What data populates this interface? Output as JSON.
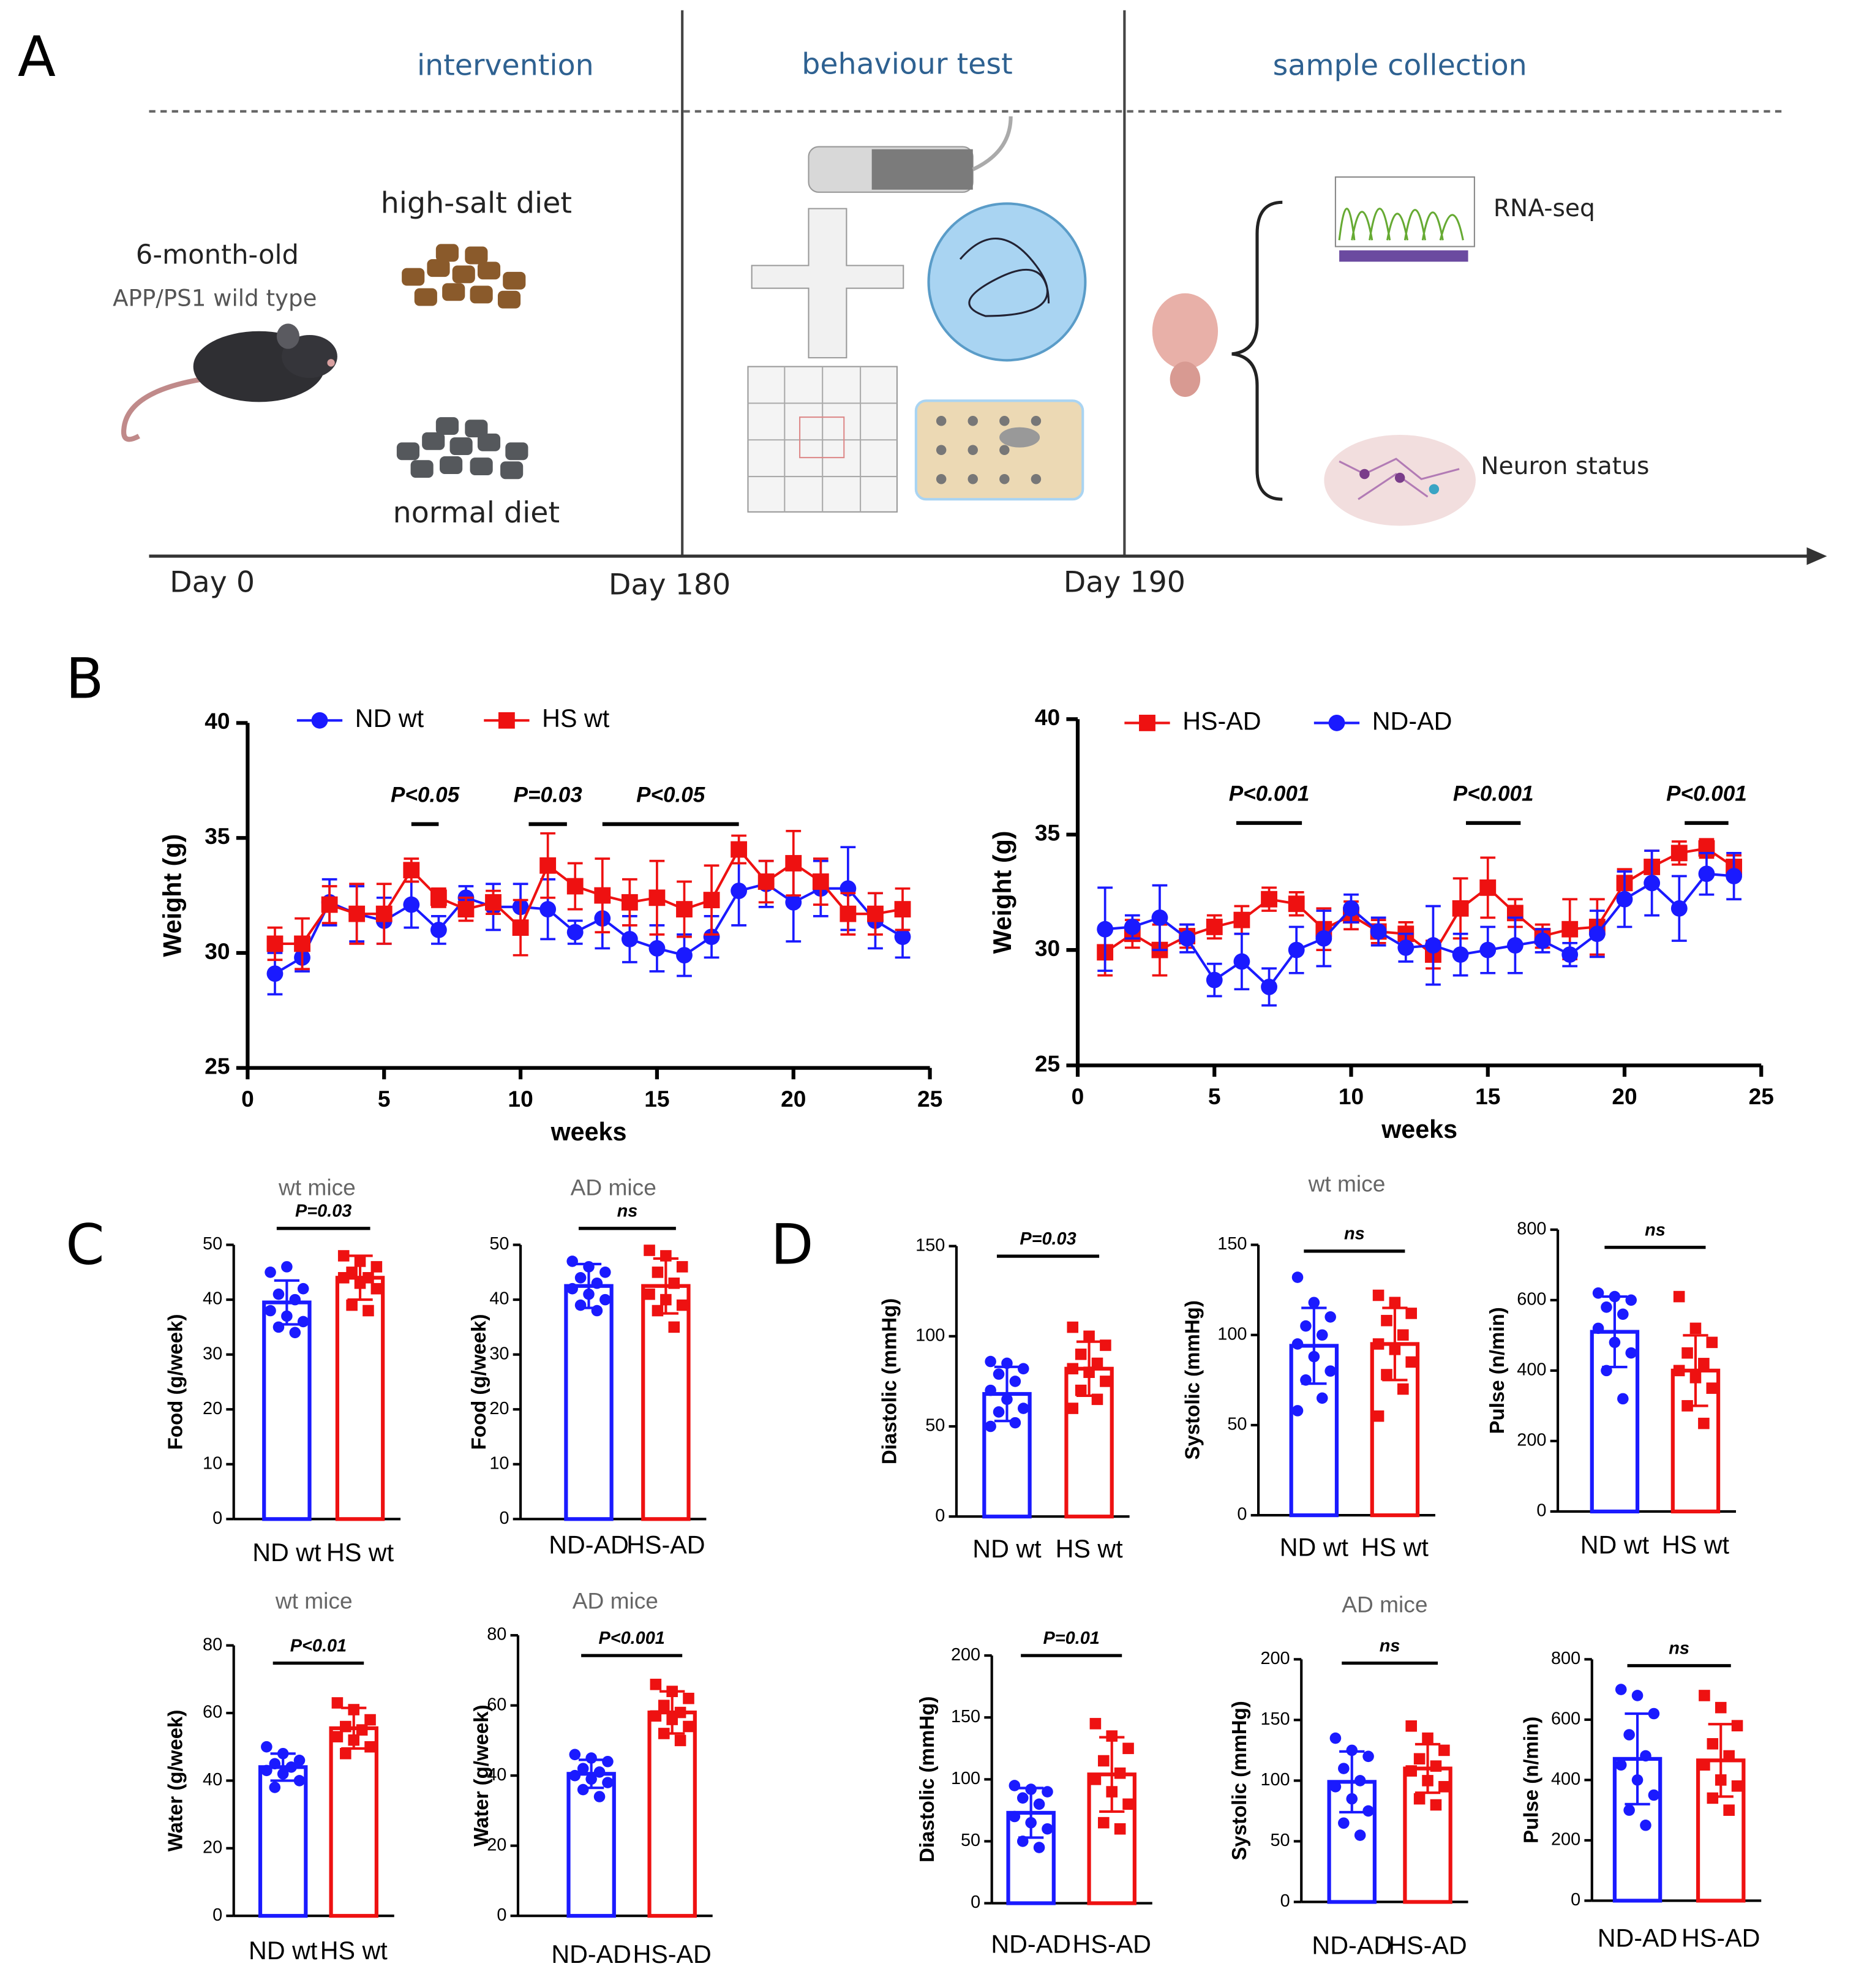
{
  "diagram": {
    "label": "A",
    "phases": [
      "intervention",
      "behaviour test",
      "sample collection"
    ],
    "age": "6-month-old",
    "genotypes": "APP/PS1 wild type",
    "diets": [
      "high-salt diet",
      "normal diet"
    ],
    "assays": [
      "RNA-seq",
      "Neuron status"
    ],
    "days": [
      "Day 0",
      "Day 180",
      "Day 190"
    ]
  },
  "panel_labels": [
    "B",
    "C",
    "D"
  ],
  "chart_data": [
    {
      "type": "line",
      "xlabel": "weeks",
      "ylabel": "Weight (g)",
      "x": [
        1,
        2,
        3,
        4,
        5,
        6,
        7,
        8,
        9,
        10,
        11,
        12,
        13,
        14,
        15,
        16,
        17,
        18,
        19,
        20,
        21,
        22,
        23,
        24
      ],
      "xlim": [
        0,
        25
      ],
      "xticks": [
        0,
        5,
        10,
        15,
        20,
        25
      ],
      "ylim": [
        25,
        40
      ],
      "yticks": [
        25,
        30,
        35,
        40
      ],
      "series": [
        {
          "name": "ND wt",
          "color": "#1a1aff",
          "marker": "circle",
          "values": [
            29.1,
            29.8,
            32.2,
            31.7,
            31.4,
            32.1,
            31.0,
            32.4,
            32.0,
            32.0,
            31.9,
            30.9,
            31.5,
            30.6,
            30.2,
            29.9,
            30.7,
            32.7,
            33.0,
            32.2,
            32.8,
            32.8,
            31.4,
            30.7
          ],
          "errors": [
            0.9,
            0.6,
            1.0,
            1.2,
            1.0,
            1.0,
            0.6,
            0.5,
            1.0,
            1.0,
            1.3,
            0.5,
            1.3,
            1.0,
            1.0,
            0.9,
            0.9,
            1.5,
            1.0,
            1.7,
            1.2,
            1.8,
            1.2,
            0.9
          ]
        },
        {
          "name": "HS wt",
          "color": "#ee1111",
          "marker": "square",
          "values": [
            30.4,
            30.4,
            32.1,
            31.7,
            31.7,
            33.6,
            32.4,
            31.9,
            32.2,
            31.1,
            33.8,
            32.9,
            32.5,
            32.2,
            32.4,
            31.9,
            32.3,
            34.5,
            33.1,
            33.9,
            33.1,
            31.7,
            31.7,
            31.9
          ],
          "errors": [
            0.7,
            1.1,
            0.8,
            1.3,
            1.3,
            0.5,
            0.4,
            0.5,
            0.5,
            1.2,
            1.4,
            1.0,
            1.6,
            1.0,
            1.6,
            1.2,
            1.5,
            0.6,
            0.9,
            1.4,
            1.0,
            0.9,
            0.9,
            0.9
          ]
        }
      ],
      "annotations": [
        {
          "text": "P<0.05",
          "x": [
            6,
            7
          ],
          "y": 35.6
        },
        {
          "text": "P=0.03",
          "x": [
            10.3,
            11.7
          ],
          "y": 35.6
        },
        {
          "text": "P<0.05",
          "x": [
            13,
            18
          ],
          "y": 35.6
        }
      ]
    },
    {
      "type": "line",
      "xlabel": "weeks",
      "ylabel": "Weight (g)",
      "x": [
        1,
        2,
        3,
        4,
        5,
        6,
        7,
        8,
        9,
        10,
        11,
        12,
        13,
        14,
        15,
        16,
        17,
        18,
        19,
        20,
        21,
        22,
        23,
        24
      ],
      "xlim": [
        0,
        25
      ],
      "xticks": [
        0,
        5,
        10,
        15,
        20,
        25
      ],
      "ylim": [
        25,
        40
      ],
      "yticks": [
        25,
        30,
        35,
        40
      ],
      "series": [
        {
          "name": "HS-AD",
          "color": "#ee1111",
          "marker": "square",
          "values": [
            29.9,
            30.7,
            30.0,
            30.6,
            31.0,
            31.3,
            32.2,
            32.0,
            30.9,
            31.5,
            30.8,
            30.7,
            29.8,
            31.8,
            32.7,
            31.6,
            30.6,
            30.9,
            31.0,
            32.9,
            33.6,
            34.2,
            34.4,
            33.6
          ],
          "errors": [
            1.0,
            0.6,
            1.1,
            0.5,
            0.5,
            0.6,
            0.5,
            0.5,
            0.9,
            0.6,
            0.5,
            0.5,
            0.6,
            1.3,
            1.3,
            0.6,
            0.5,
            1.3,
            1.2,
            0.6,
            0.7,
            0.5,
            0.4,
            0.5
          ]
        },
        {
          "name": "ND-AD",
          "color": "#1a1aff",
          "marker": "circle",
          "values": [
            30.9,
            31.0,
            31.4,
            30.5,
            28.7,
            29.5,
            28.4,
            30.0,
            30.5,
            31.8,
            30.8,
            30.1,
            30.2,
            29.8,
            30.0,
            30.2,
            30.4,
            29.8,
            30.7,
            32.2,
            32.9,
            31.8,
            33.3,
            33.2
          ],
          "errors": [
            1.8,
            0.5,
            1.4,
            0.6,
            0.7,
            1.2,
            0.8,
            1.0,
            1.2,
            0.6,
            0.6,
            0.6,
            1.7,
            0.9,
            1.0,
            1.2,
            0.5,
            0.5,
            1.0,
            1.2,
            1.4,
            1.4,
            0.9,
            1.0
          ]
        }
      ],
      "annotations": [
        {
          "text": "P<0.001",
          "x": [
            5.8,
            8.2
          ],
          "y": 35.5
        },
        {
          "text": "P<0.001",
          "x": [
            14.2,
            16.2
          ],
          "y": 35.5
        },
        {
          "text": "P<0.001",
          "x": [
            22.2,
            23.8
          ],
          "y": 35.5
        }
      ]
    },
    {
      "type": "bar",
      "title": "wt mice",
      "ylabel": "Food (g/week)",
      "categories": [
        "ND wt",
        "HS wt"
      ],
      "colors": [
        "#1a1aff",
        "#ee1111"
      ],
      "values": [
        39.5,
        44
      ],
      "errors": [
        4,
        4
      ],
      "points": [
        [
          45,
          46,
          42,
          41,
          40,
          38,
          37,
          36,
          35,
          34
        ],
        [
          48,
          47,
          46,
          45,
          44,
          44,
          43,
          42,
          39,
          38
        ]
      ],
      "ylim": [
        0,
        50
      ],
      "yticks": [
        0,
        10,
        20,
        30,
        40,
        50
      ],
      "annotation": "P=0.03"
    },
    {
      "type": "bar",
      "title": "AD mice",
      "ylabel": "Food (g/week)",
      "categories": [
        "ND-AD",
        "HS-AD"
      ],
      "colors": [
        "#1a1aff",
        "#ee1111"
      ],
      "values": [
        42.5,
        42.5
      ],
      "errors": [
        4,
        5
      ],
      "points": [
        [
          47,
          46,
          45,
          44,
          43,
          42,
          41,
          40,
          39,
          38
        ],
        [
          49,
          48,
          46,
          45,
          43,
          41,
          40,
          39,
          38,
          35
        ]
      ],
      "ylim": [
        0,
        50
      ],
      "yticks": [
        0,
        10,
        20,
        30,
        40,
        50
      ],
      "annotation": "ns"
    },
    {
      "type": "bar",
      "title": "wt mice",
      "ylabel": "Water (g/week)",
      "categories": [
        "ND wt",
        "HS wt"
      ],
      "colors": [
        "#1a1aff",
        "#ee1111"
      ],
      "values": [
        44,
        55.5
      ],
      "errors": [
        4,
        6
      ],
      "points": [
        [
          50,
          48,
          46,
          45,
          44,
          43,
          42,
          40,
          38
        ],
        [
          63,
          61,
          58,
          56,
          55,
          53,
          52,
          50,
          48
        ]
      ],
      "ylim": [
        0,
        80
      ],
      "yticks": [
        0,
        20,
        40,
        60,
        80
      ],
      "annotation": "P<0.01"
    },
    {
      "type": "bar",
      "title": "AD mice",
      "ylabel": "Water (g/week)",
      "categories": [
        "ND-AD",
        "HS-AD"
      ],
      "colors": [
        "#1a1aff",
        "#ee1111"
      ],
      "values": [
        40.5,
        58
      ],
      "errors": [
        4,
        6
      ],
      "points": [
        [
          46,
          45,
          44,
          42,
          41,
          40,
          39,
          38,
          36,
          34
        ],
        [
          66,
          64,
          62,
          60,
          58,
          57,
          56,
          54,
          52,
          50
        ]
      ],
      "ylim": [
        0,
        80
      ],
      "yticks": [
        0,
        20,
        40,
        60,
        80
      ],
      "annotation": "P<0.001"
    },
    {
      "type": "bar",
      "ylabel": "Diastolic (mmHg)",
      "categories": [
        "ND wt",
        "HS wt"
      ],
      "colors": [
        "#1a1aff",
        "#ee1111"
      ],
      "values": [
        68,
        82
      ],
      "errors": [
        15,
        15
      ],
      "points": [
        [
          86,
          85,
          82,
          79,
          75,
          70,
          65,
          60,
          58,
          52,
          50
        ],
        [
          105,
          100,
          95,
          90,
          85,
          82,
          80,
          75,
          70,
          65,
          60
        ]
      ],
      "ylim": [
        0,
        150
      ],
      "yticks": [
        0,
        50,
        100,
        150
      ],
      "annotation": "P=0.03"
    },
    {
      "type": "bar",
      "title": "wt mice",
      "ylabel": "Systolic (mmHg)",
      "categories": [
        "ND wt",
        "HS wt"
      ],
      "colors": [
        "#1a1aff",
        "#ee1111"
      ],
      "values": [
        94,
        95
      ],
      "errors": [
        21,
        20
      ],
      "points": [
        [
          132,
          118,
          110,
          105,
          100,
          95,
          88,
          80,
          75,
          65,
          58
        ],
        [
          122,
          118,
          112,
          108,
          100,
          95,
          92,
          85,
          78,
          70,
          55
        ]
      ],
      "ylim": [
        0,
        150
      ],
      "yticks": [
        0,
        50,
        100,
        150
      ],
      "annotation": "ns"
    },
    {
      "type": "bar",
      "ylabel": "Pulse (n/min)",
      "categories": [
        "ND wt",
        "HS wt"
      ],
      "colors": [
        "#1a1aff",
        "#ee1111"
      ],
      "values": [
        510,
        400
      ],
      "errors": [
        100,
        100
      ],
      "points": [
        [
          620,
          610,
          600,
          580,
          560,
          520,
          480,
          450,
          400,
          320
        ],
        [
          610,
          520,
          480,
          450,
          420,
          400,
          380,
          350,
          300,
          250
        ]
      ],
      "ylim": [
        0,
        800
      ],
      "yticks": [
        0,
        200,
        400,
        600,
        800
      ],
      "annotation": "ns"
    },
    {
      "type": "bar",
      "ylabel": "Diastolic (mmHg)",
      "categories": [
        "ND-AD",
        "HS-AD"
      ],
      "colors": [
        "#1a1aff",
        "#ee1111"
      ],
      "values": [
        73,
        104
      ],
      "errors": [
        20,
        30
      ],
      "points": [
        [
          95,
          92,
          90,
          85,
          80,
          70,
          65,
          60,
          50,
          45
        ],
        [
          145,
          135,
          125,
          115,
          105,
          100,
          90,
          80,
          65,
          60
        ]
      ],
      "ylim": [
        0,
        200
      ],
      "yticks": [
        0,
        50,
        100,
        150,
        200
      ],
      "annotation": "P=0.01"
    },
    {
      "type": "bar",
      "title": "AD mice",
      "ylabel": "Systolic (mmHg)",
      "categories": [
        "ND-AD",
        "HS-AD"
      ],
      "colors": [
        "#1a1aff",
        "#ee1111"
      ],
      "values": [
        99,
        110
      ],
      "errors": [
        25,
        20
      ],
      "points": [
        [
          135,
          125,
          120,
          110,
          100,
          95,
          85,
          75,
          65,
          55
        ],
        [
          145,
          135,
          125,
          118,
          112,
          108,
          100,
          95,
          85,
          80
        ]
      ],
      "ylim": [
        0,
        200
      ],
      "yticks": [
        0,
        50,
        100,
        150,
        200
      ],
      "annotation": "ns"
    },
    {
      "type": "bar",
      "ylabel": "Pulse (n/min)",
      "categories": [
        "ND-AD",
        "HS-AD"
      ],
      "colors": [
        "#1a1aff",
        "#ee1111"
      ],
      "values": [
        470,
        465
      ],
      "errors": [
        150,
        120
      ],
      "points": [
        [
          700,
          680,
          620,
          550,
          480,
          450,
          400,
          350,
          300,
          250
        ],
        [
          680,
          640,
          580,
          520,
          480,
          450,
          400,
          380,
          340,
          300
        ]
      ],
      "ylim": [
        0,
        800
      ],
      "yticks": [
        0,
        200,
        400,
        600,
        800
      ],
      "annotation": "ns"
    }
  ]
}
